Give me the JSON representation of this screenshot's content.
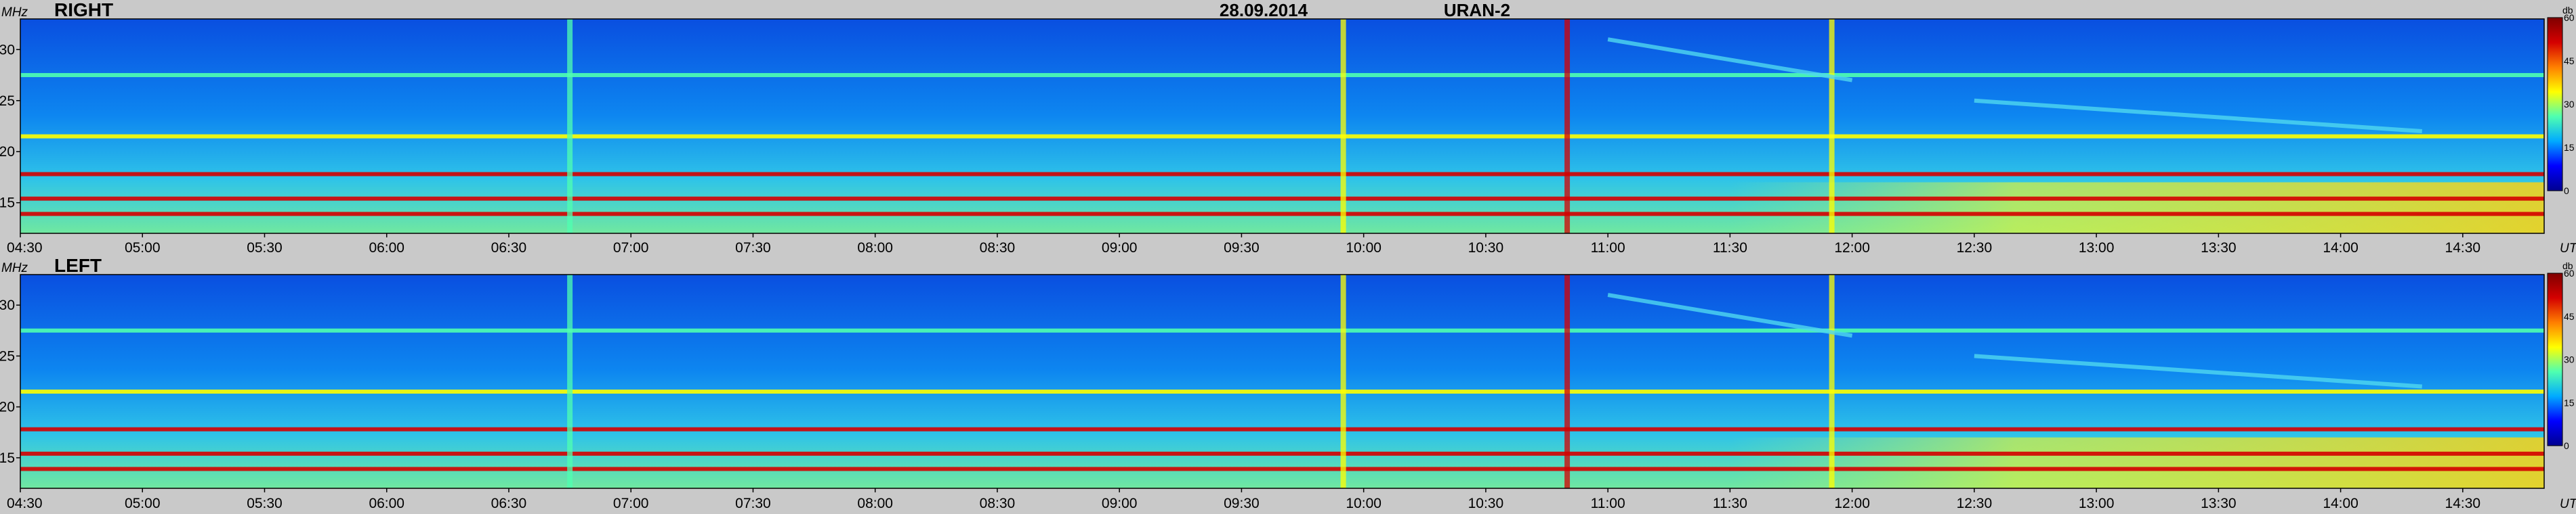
{
  "chart_data": {
    "type": "heatmap",
    "title": {
      "date": "28.09.2014",
      "instrument": "URAN-2"
    },
    "panels": [
      {
        "label": "RIGHT"
      },
      {
        "label": "LEFT"
      }
    ],
    "x_axis": {
      "unit_label": "UT",
      "range": [
        "04:30",
        "14:50"
      ],
      "ticks": [
        "04:30",
        "05:00",
        "05:30",
        "06:00",
        "06:30",
        "07:00",
        "07:30",
        "08:00",
        "08:30",
        "09:00",
        "09:30",
        "10:00",
        "10:30",
        "11:00",
        "11:30",
        "12:00",
        "12:30",
        "13:00",
        "13:30",
        "14:00",
        "14:30"
      ]
    },
    "y_axis": {
      "unit_label": "MHz",
      "range": [
        12,
        33
      ],
      "ticks": [
        15,
        20,
        25,
        30
      ]
    },
    "colorbar": {
      "unit_label": "db",
      "range": [
        0,
        60
      ],
      "ticks": [
        0,
        15,
        30,
        45,
        60
      ]
    },
    "colormap": [
      "#00008f",
      "#0000ff",
      "#00aaff",
      "#4fffb0",
      "#ffff00",
      "#ff7f00",
      "#d40000",
      "#7f0000"
    ],
    "background_level_db": 10,
    "features": {
      "horizontal_bands": [
        {
          "freq_mhz": 17.8,
          "intensity_db": 55
        },
        {
          "freq_mhz": 15.4,
          "intensity_db": 52
        },
        {
          "freq_mhz": 13.9,
          "intensity_db": 48
        },
        {
          "freq_mhz": 21.5,
          "intensity_db": 30
        },
        {
          "freq_mhz": 27.5,
          "intensity_db": 28
        }
      ],
      "vertical_bursts": [
        {
          "time": "09:55",
          "intensity_db": 35
        },
        {
          "time": "10:50",
          "intensity_db": 48
        },
        {
          "time": "11:55",
          "intensity_db": 30
        },
        {
          "time": "06:45",
          "intensity_db": 22
        }
      ],
      "drift_lines": [
        {
          "start": "11:00",
          "end": "12:00",
          "freq_start_mhz": 31,
          "freq_end_mhz": 27
        },
        {
          "start": "12:30",
          "end": "14:20",
          "freq_start_mhz": 25,
          "freq_end_mhz": 22
        }
      ],
      "low_freq_enhancement": {
        "start": "11:30",
        "end": "14:50",
        "freq_max_mhz": 17,
        "intensity_db": 32
      }
    }
  }
}
